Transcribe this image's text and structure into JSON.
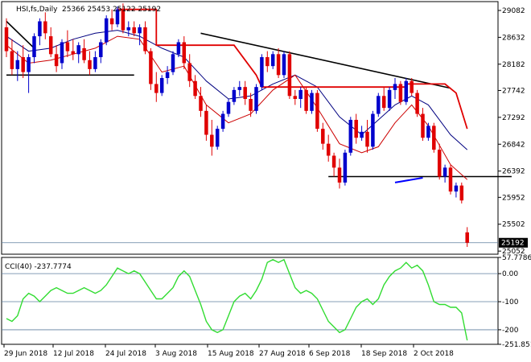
{
  "chart_data": [
    {
      "type": "candlestick",
      "symbol": "HSI,fs,Daily",
      "ohlc_text": "25366 25453 25122 25192",
      "last_price_label": "25192",
      "colors": {
        "up": "#0000cc",
        "down": "#e00000",
        "ma_slow": "#000080",
        "ma_fast": "#cc0000",
        "trendline": "#000000",
        "stop": "#e00000",
        "grid_line": "#5f7f9f"
      },
      "y_ticks": [
        "29082",
        "28632",
        "28182",
        "27742",
        "27292",
        "26842",
        "26392",
        "25952",
        "25502",
        "25052"
      ],
      "x_ticks": [
        "29 Jun 2018",
        "12 Jul 2018",
        "24 Jul 2018",
        "3 Aug 2018",
        "15 Aug 2018",
        "27 Aug 2018",
        "6 Sep 2018",
        "18 Sep 2018",
        "2 Oct 2018"
      ],
      "ylim": [
        25000,
        29230
      ],
      "candles": [
        [
          28800,
          28950,
          28300,
          28400
        ],
        [
          28400,
          28600,
          28000,
          28100
        ],
        [
          28100,
          28400,
          27900,
          28250
        ],
        [
          28300,
          28500,
          27950,
          28050
        ],
        [
          28050,
          28350,
          27700,
          28300
        ],
        [
          28300,
          28700,
          28200,
          28650
        ],
        [
          28650,
          28950,
          28500,
          28900
        ],
        [
          28900,
          29050,
          28600,
          28700
        ],
        [
          28650,
          28800,
          28300,
          28350
        ],
        [
          28350,
          28500,
          28050,
          28150
        ],
        [
          28200,
          28600,
          28100,
          28550
        ],
        [
          28550,
          28750,
          28300,
          28400
        ],
        [
          28400,
          28600,
          28250,
          28350
        ],
        [
          28350,
          28550,
          28200,
          28500
        ],
        [
          28450,
          28600,
          28200,
          28250
        ],
        [
          28250,
          28400,
          28000,
          28100
        ],
        [
          28100,
          28400,
          28050,
          28300
        ],
        [
          28300,
          28600,
          28200,
          28550
        ],
        [
          28550,
          29000,
          28500,
          28950
        ],
        [
          28950,
          29100,
          28750,
          28850
        ],
        [
          28850,
          29150,
          28800,
          29100
        ],
        [
          29100,
          29200,
          28700,
          28750
        ],
        [
          28750,
          28900,
          28650,
          28800
        ],
        [
          28800,
          28900,
          28650,
          28700
        ],
        [
          28700,
          28850,
          28500,
          28800
        ],
        [
          28800,
          28900,
          28350,
          28400
        ],
        [
          28400,
          28450,
          27750,
          27850
        ],
        [
          27850,
          28050,
          27550,
          27700
        ],
        [
          27700,
          28000,
          27650,
          27950
        ],
        [
          27950,
          28150,
          27850,
          28050
        ],
        [
          28050,
          28400,
          28000,
          28350
        ],
        [
          28350,
          28600,
          28300,
          28550
        ],
        [
          28550,
          28650,
          28100,
          28200
        ],
        [
          28200,
          28350,
          27800,
          27900
        ],
        [
          27900,
          28000,
          27600,
          27650
        ],
        [
          27650,
          27800,
          27300,
          27400
        ],
        [
          27400,
          27500,
          26900,
          27000
        ],
        [
          27000,
          27250,
          26650,
          26800
        ],
        [
          26800,
          27150,
          26750,
          27100
        ],
        [
          27100,
          27400,
          27050,
          27350
        ],
        [
          27350,
          27600,
          27300,
          27550
        ],
        [
          27550,
          27800,
          27500,
          27750
        ],
        [
          27750,
          27900,
          27650,
          27800
        ],
        [
          27800,
          27900,
          27500,
          27600
        ],
        [
          27600,
          27700,
          27300,
          27400
        ],
        [
          27400,
          27850,
          27350,
          27800
        ],
        [
          27800,
          28350,
          27750,
          28300
        ],
        [
          28300,
          28400,
          28050,
          28150
        ],
        [
          28150,
          28400,
          28100,
          28350
        ],
        [
          28350,
          28450,
          27950,
          28000
        ],
        [
          28000,
          28400,
          27950,
          28350
        ],
        [
          28350,
          28400,
          27600,
          27650
        ],
        [
          27650,
          27750,
          27500,
          27600
        ],
        [
          27600,
          27800,
          27450,
          27750
        ],
        [
          27750,
          27800,
          27350,
          27400
        ],
        [
          27400,
          27750,
          27350,
          27700
        ],
        [
          27700,
          27750,
          27050,
          27100
        ],
        [
          27100,
          27200,
          26750,
          26850
        ],
        [
          26850,
          27000,
          26550,
          26650
        ],
        [
          26650,
          26700,
          26300,
          26450
        ],
        [
          26450,
          26600,
          26100,
          26200
        ],
        [
          26200,
          26750,
          26150,
          26700
        ],
        [
          26700,
          27300,
          26650,
          27250
        ],
        [
          27250,
          27350,
          26850,
          26950
        ],
        [
          26950,
          27150,
          26900,
          27050
        ],
        [
          27050,
          27250,
          26700,
          26800
        ],
        [
          26800,
          27400,
          26750,
          27350
        ],
        [
          27350,
          27700,
          27300,
          27650
        ],
        [
          27650,
          27800,
          27400,
          27450
        ],
        [
          27450,
          27800,
          27400,
          27750
        ],
        [
          27750,
          27950,
          27600,
          27850
        ],
        [
          27850,
          27900,
          27500,
          27550
        ],
        [
          27550,
          27950,
          27500,
          27900
        ],
        [
          27900,
          27950,
          27650,
          27700
        ],
        [
          27700,
          27750,
          27300,
          27350
        ],
        [
          27350,
          27450,
          26900,
          26950
        ],
        [
          26950,
          27200,
          26900,
          27150
        ],
        [
          27150,
          27200,
          26700,
          26750
        ],
        [
          26750,
          26850,
          26250,
          26300
        ],
        [
          26300,
          26500,
          26200,
          26450
        ],
        [
          26450,
          26500,
          26000,
          26050
        ],
        [
          26050,
          26200,
          25950,
          26150
        ],
        [
          26150,
          26200,
          25850,
          25900
        ],
        [
          25366,
          25453,
          25122,
          25192
        ]
      ],
      "ma_slow": [
        [
          0,
          28650
        ],
        [
          4,
          28400
        ],
        [
          8,
          28450
        ],
        [
          12,
          28600
        ],
        [
          16,
          28700
        ],
        [
          20,
          28750
        ],
        [
          24,
          28650
        ],
        [
          28,
          28450
        ],
        [
          32,
          28300
        ],
        [
          36,
          27900
        ],
        [
          40,
          27600
        ],
        [
          44,
          27650
        ],
        [
          48,
          27850
        ],
        [
          52,
          28000
        ],
        [
          56,
          27800
        ],
        [
          60,
          27300
        ],
        [
          64,
          27000
        ],
        [
          67,
          27250
        ],
        [
          70,
          27500
        ],
        [
          73,
          27650
        ],
        [
          76,
          27500
        ],
        [
          80,
          27000
        ],
        [
          83,
          26750
        ]
      ],
      "ma_fast": [
        [
          0,
          28500
        ],
        [
          4,
          28200
        ],
        [
          8,
          28250
        ],
        [
          12,
          28350
        ],
        [
          16,
          28450
        ],
        [
          20,
          28650
        ],
        [
          24,
          28600
        ],
        [
          28,
          28050
        ],
        [
          32,
          28150
        ],
        [
          36,
          27500
        ],
        [
          40,
          27200
        ],
        [
          44,
          27350
        ],
        [
          48,
          27750
        ],
        [
          52,
          28000
        ],
        [
          56,
          27450
        ],
        [
          60,
          26850
        ],
        [
          64,
          26700
        ],
        [
          67,
          26800
        ],
        [
          70,
          27200
        ],
        [
          73,
          27500
        ],
        [
          76,
          27150
        ],
        [
          80,
          26500
        ],
        [
          83,
          26250
        ]
      ],
      "stop_line": [
        [
          20,
          29100
        ],
        [
          27,
          29100
        ],
        [
          27,
          28500
        ],
        [
          40,
          28500
        ],
        [
          41,
          28500
        ],
        [
          45,
          28000
        ],
        [
          46,
          27800
        ],
        [
          72,
          27800
        ],
        [
          72,
          27850
        ],
        [
          79,
          27850
        ],
        [
          81,
          27700
        ],
        [
          83,
          27100
        ]
      ],
      "trendline": [
        [
          35,
          28700
        ],
        [
          80,
          27780
        ]
      ],
      "resistance_line": [
        [
          0,
          28000
        ],
        [
          23,
          28000
        ]
      ],
      "support_line": [
        [
          58,
          26300
        ],
        [
          91,
          26300
        ]
      ],
      "blue_stub": [
        [
          70,
          26200
        ],
        [
          75,
          26280
        ]
      ],
      "steep_line": [
        [
          0,
          28900
        ],
        [
          5,
          28450
        ]
      ]
    },
    {
      "type": "line",
      "title": "CCI(40) -237.7774",
      "y_ticks": [
        "57.7786",
        "0.00",
        "-100",
        "-200",
        "-251.851"
      ],
      "levels": [
        100,
        0,
        -100,
        -200
      ],
      "ylim": [
        -251.851,
        57.7786
      ],
      "series": [
        {
          "color": "#32dc32",
          "values": [
            -160,
            -170,
            -150,
            -90,
            -70,
            -80,
            -100,
            -80,
            -60,
            -50,
            -60,
            -70,
            -70,
            -60,
            -50,
            -60,
            -70,
            -60,
            -40,
            -10,
            20,
            10,
            0,
            10,
            0,
            -30,
            -60,
            -90,
            -90,
            -70,
            -50,
            -10,
            10,
            -10,
            -60,
            -110,
            -170,
            -200,
            -210,
            -200,
            -150,
            -100,
            -80,
            -70,
            -90,
            -60,
            -20,
            40,
            50,
            40,
            50,
            0,
            -50,
            -70,
            -60,
            -70,
            -90,
            -130,
            -170,
            -190,
            -210,
            -200,
            -160,
            -120,
            -100,
            -90,
            -110,
            -90,
            -40,
            -10,
            10,
            20,
            40,
            20,
            30,
            10,
            -40,
            -100,
            -110,
            -110,
            -120,
            -120,
            -140,
            -237.78
          ]
        }
      ]
    }
  ]
}
